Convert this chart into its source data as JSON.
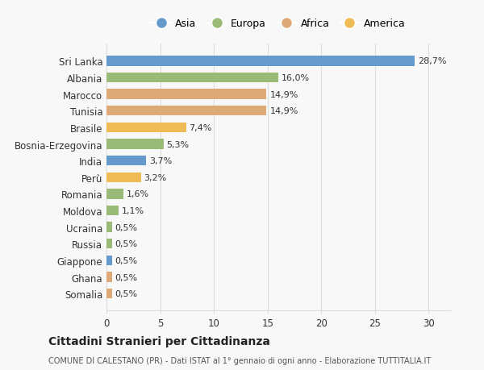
{
  "categories": [
    "Sri Lanka",
    "Albania",
    "Marocco",
    "Tunisia",
    "Brasile",
    "Bosnia-Erzegovina",
    "India",
    "Perù",
    "Romania",
    "Moldova",
    "Ucraina",
    "Russia",
    "Giappone",
    "Ghana",
    "Somalia"
  ],
  "values": [
    28.7,
    16.0,
    14.9,
    14.9,
    7.4,
    5.3,
    3.7,
    3.2,
    1.6,
    1.1,
    0.5,
    0.5,
    0.5,
    0.5,
    0.5
  ],
  "labels": [
    "28,7%",
    "16,0%",
    "14,9%",
    "14,9%",
    "7,4%",
    "5,3%",
    "3,7%",
    "3,2%",
    "1,6%",
    "1,1%",
    "0,5%",
    "0,5%",
    "0,5%",
    "0,5%",
    "0,5%"
  ],
  "continents": [
    "Asia",
    "Europa",
    "Africa",
    "Africa",
    "America",
    "Europa",
    "Asia",
    "America",
    "Europa",
    "Europa",
    "Europa",
    "Europa",
    "Asia",
    "Africa",
    "Africa"
  ],
  "continent_colors": {
    "Asia": "#6699cc",
    "Europa": "#99bb77",
    "Africa": "#ddaa77",
    "America": "#eebb55"
  },
  "legend_order": [
    "Asia",
    "Europa",
    "Africa",
    "America"
  ],
  "title": "Cittadini Stranieri per Cittadinanza",
  "subtitle": "COMUNE DI CALESTANO (PR) - Dati ISTAT al 1° gennaio di ogni anno - Elaborazione TUTTITALIA.IT",
  "xlim": [
    0,
    32
  ],
  "xticks": [
    0,
    5,
    10,
    15,
    20,
    25,
    30
  ],
  "background_color": "#f8f8f8",
  "bar_height": 0.6,
  "grid_color": "#dddddd"
}
